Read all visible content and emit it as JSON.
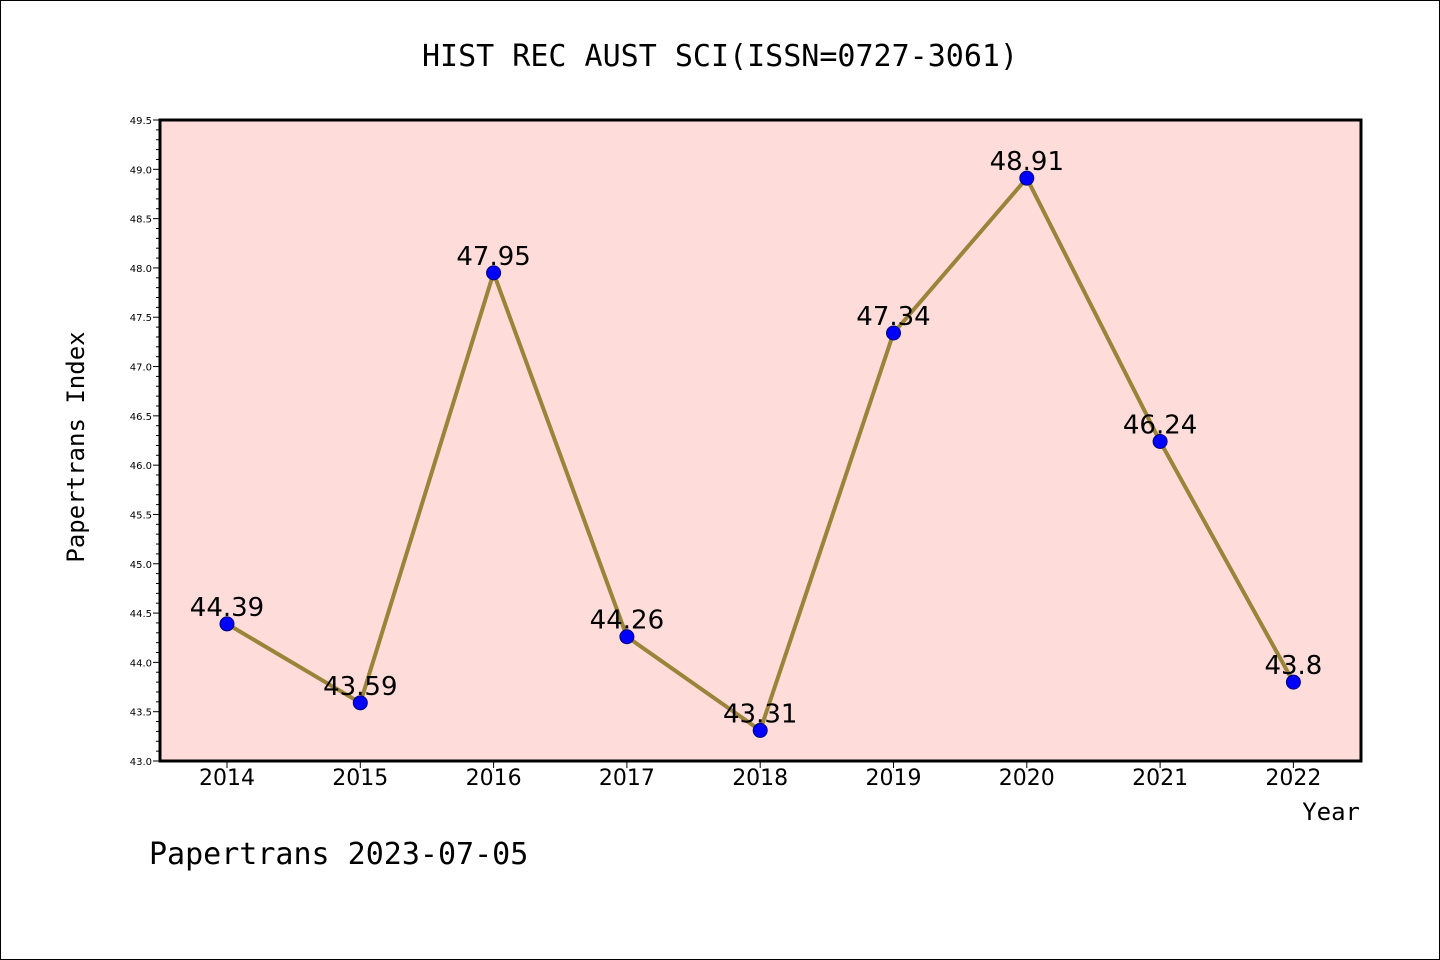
{
  "chart_data": {
    "type": "line",
    "title": "HIST REC AUST SCI(ISSN=0727-3061)",
    "xlabel": "Year",
    "ylabel": "Papertrans Index",
    "categories": [
      "2014",
      "2015",
      "2016",
      "2017",
      "2018",
      "2019",
      "2020",
      "2021",
      "2022"
    ],
    "series": [
      {
        "values": [
          44.39,
          43.59,
          47.95,
          44.26,
          43.31,
          47.34,
          48.91,
          46.24,
          43.8
        ],
        "labels": [
          "44.39",
          "43.59",
          "47.95",
          "44.26",
          "43.31",
          "47.34",
          "48.91",
          "46.24",
          "43.8"
        ]
      }
    ],
    "ylim": [
      43.0,
      49.5
    ],
    "yticks": [
      "43.0",
      "43.5",
      "44.0",
      "44.5",
      "45.0",
      "45.5",
      "46.0",
      "46.5",
      "47.0",
      "47.5",
      "48.0",
      "48.5",
      "49.0",
      "49.5"
    ],
    "grid": false,
    "legend": "none",
    "footer": "Papertrans 2023-07-05"
  },
  "colors": {
    "plot_background": "#fddcda",
    "line": "#9a8439",
    "marker": "#0000ff",
    "axis": "#000000"
  }
}
